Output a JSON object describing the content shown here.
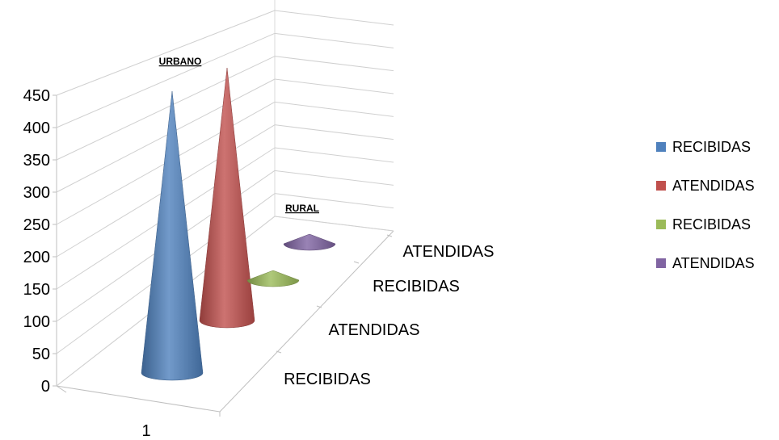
{
  "chart_data": {
    "type": "bar",
    "shape": "3d-cone",
    "categories": [
      "1"
    ],
    "depth_labels": [
      "RECIBIDAS",
      "ATENDIDAS",
      "RECIBIDAS",
      "ATENDIDAS"
    ],
    "series": [
      {
        "name": "RECIBIDAS",
        "values": [
          430
        ],
        "color": "#4f81bd"
      },
      {
        "name": "ATENDIDAS",
        "values": [
          455
        ],
        "color": "#c0504d"
      },
      {
        "name": "RECIBIDAS",
        "values": [
          6
        ],
        "color": "#9bbb59"
      },
      {
        "name": "ATENDIDAS",
        "values": [
          7
        ],
        "color": "#8064a2"
      }
    ],
    "y_ticks": [
      "0",
      "50",
      "100",
      "150",
      "200",
      "250",
      "300",
      "350",
      "400",
      "450"
    ],
    "ylim": [
      0,
      450
    ],
    "grid": true,
    "legend_position": "right",
    "annotations": [
      "URBANO",
      "RURAL"
    ]
  }
}
